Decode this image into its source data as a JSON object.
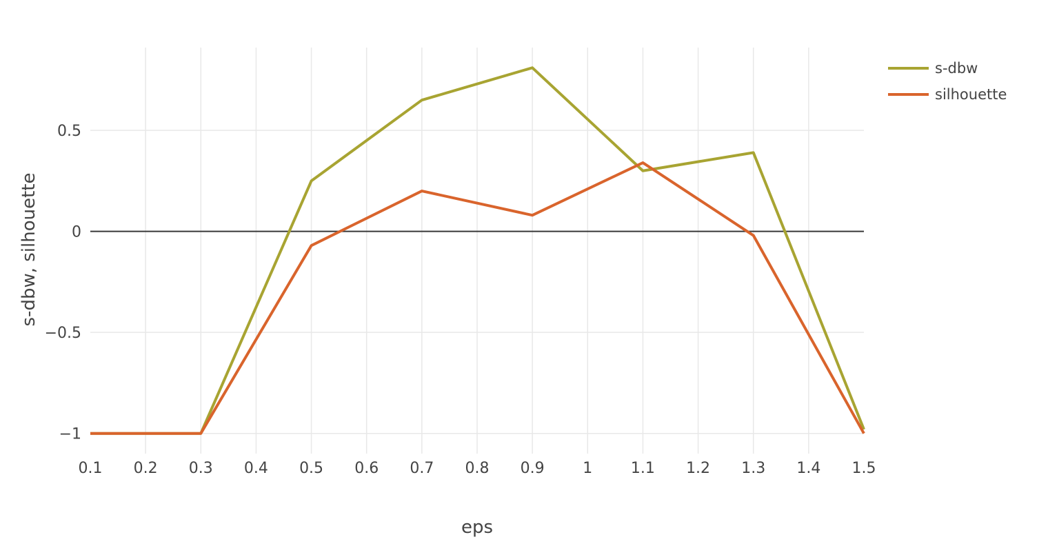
{
  "chart_data": {
    "type": "line",
    "title": "",
    "xlabel": "eps",
    "ylabel": "s-dbw, silhouette",
    "x": [
      0.1,
      0.3,
      0.5,
      0.7,
      0.9,
      1.1,
      1.3,
      1.5
    ],
    "series": [
      {
        "name": "s-dbw",
        "color": "#a8a432",
        "values": [
          -1.0,
          -1.0,
          0.25,
          0.65,
          0.81,
          0.3,
          0.39,
          -0.98
        ]
      },
      {
        "name": "silhouette",
        "color": "#d9642c",
        "values": [
          -1.0,
          -1.0,
          -0.07,
          0.2,
          0.08,
          0.34,
          -0.02,
          -1.0
        ]
      }
    ],
    "xlim": [
      0.1,
      1.5
    ],
    "ylim": [
      -1.1,
      0.91
    ],
    "x_ticks": {
      "values": [
        0.1,
        0.2,
        0.3,
        0.4,
        0.5,
        0.6,
        0.7,
        0.8,
        0.9,
        1.0,
        1.1,
        1.2,
        1.3,
        1.4,
        1.5
      ],
      "labels": [
        "0.1",
        "0.2",
        "0.3",
        "0.4",
        "0.5",
        "0.6",
        "0.7",
        "0.8",
        "0.9",
        "1",
        "1.1",
        "1.2",
        "1.3",
        "1.4",
        "1.5"
      ]
    },
    "y_ticks": {
      "values": [
        0.5,
        0,
        -0.5,
        -1
      ],
      "labels": [
        "0.5",
        "0",
        "−0.5",
        "−1"
      ]
    },
    "x_grid": [
      0.2,
      0.3,
      0.4,
      0.5,
      0.6,
      0.7,
      0.8,
      0.9,
      1.0,
      1.1,
      1.2,
      1.3,
      1.4
    ],
    "y_grid": [
      0.5,
      0.5,
      -0.5,
      -1
    ],
    "grid": true,
    "zero_line": true,
    "legend_position": "top-right",
    "line_width": 4,
    "colors": {
      "background": "#ffffff",
      "grid": "#e8e8e8",
      "zero_line": "#383838",
      "text": "#444444"
    }
  }
}
